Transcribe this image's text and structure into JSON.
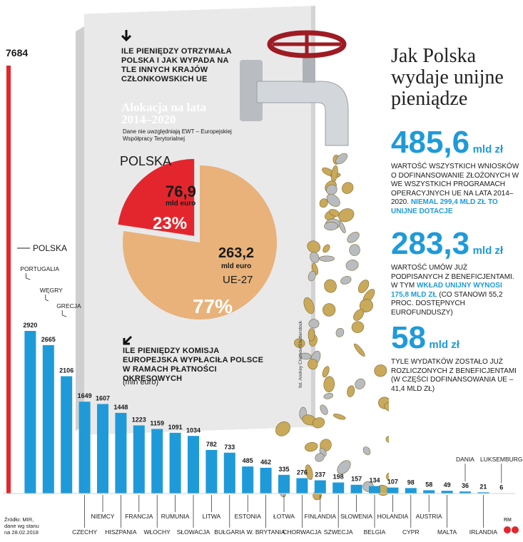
{
  "header": {
    "title_line1": "Jak Polska",
    "title_line2": "wydaje unijne",
    "title_line3": "pieniądze"
  },
  "allocation": {
    "question": "ILE PIENIĘDZY OTRZYMAŁA POLSKA I JAK WYPADA NA TLE INNYCH KRAJÓW CZŁONKOWSKICH UE",
    "title": "Alokacja na lata 2014–2020",
    "note": "Dane nie uwzględniają EWT – Europejskiej Współpracy Terytorialnej",
    "polska_label": "POLSKA",
    "polska_value": "76,9",
    "polska_unit": "mld euro",
    "polska_pct": "23%",
    "ue_value": "263,2",
    "ue_unit": "mld euro",
    "ue_label": "UE-27",
    "ue_pct": "77%",
    "colors": {
      "polska": "#e3262d",
      "ue": "#e8b27a"
    }
  },
  "payments": {
    "question": "ILE PIENIĘDZY KOMISJA EUROPEJSKA WYPŁACIŁA POLSCE W RAMACH PŁATNOŚCI OKRESOWYCH",
    "unit": "(mln euro)"
  },
  "stats": [
    {
      "value": "485,6",
      "unit": "mld zł",
      "text": "WARTOŚĆ WSZYSTKICH WNIOSKÓW O DOFINANSOWANIE ZŁOŻONYCH W WE WSZYSTKICH PROGRAMACH OPERACYJNYCH UE NA LATA 2014–2020.",
      "highlight": "NIEMAL 299,4 MLD ZŁ TO UNIJNE DOTACJE"
    },
    {
      "value": "283,3",
      "unit": "mld zł",
      "text_before": "WARTOŚĆ UMÓW JUŻ PODPISANYCH Z BENEFICJENTAMI. W TYM",
      "highlight": "WKŁAD UNIJNY WYNOSI 175,8 MLD ZŁ",
      "text_after": "(CO STANOWI 55,2 PROC. DOSTĘPNYCH EUROFUNDUSZY)"
    },
    {
      "value": "58",
      "unit": "mld zł",
      "text": "TYLE WYDATKÓW ZOSTAŁO JUŻ ROZLICZONYCH Z BENEFICJENTAMI (W CZĘŚCI DOFINANSOWANIA UE – 41,4 MLD ZŁ)"
    }
  ],
  "source": {
    "line1": "Źródło: MIR,",
    "line2": "dane wg stanu",
    "line3": "na 28.02.2018"
  },
  "photo_credit": "fot. Andrey Chizhov/Shutterstock",
  "logo": "RM",
  "chart_data": [
    {
      "type": "bar",
      "categories": [
        "POLSKA",
        "PORTUGALIA",
        "WĘGRY",
        "GRECJA",
        "CZECHY",
        "NIEMCY",
        "HISZPANIA",
        "FRANCJA",
        "WŁOCHY",
        "RUMUNIA",
        "SŁOWACJA",
        "LITWA",
        "BUŁGARIA",
        "ESTONIA",
        "W. BRYTANIA",
        "ŁOTWA",
        "CHORWACJA",
        "FINLANDIA",
        "SZWECJA",
        "SŁOWENIA",
        "BELGIA",
        "HOLANDIA",
        "CYPR",
        "AUSTRIA",
        "MALTA",
        "DANIA",
        "IRLANDIA",
        "LUKSEMBURG"
      ],
      "values": [
        7684,
        2920,
        2665,
        2106,
        1649,
        1607,
        1448,
        1223,
        1159,
        1091,
        1034,
        782,
        733,
        485,
        462,
        335,
        276,
        237,
        198,
        157,
        134,
        107,
        98,
        58,
        49,
        36,
        21,
        6
      ],
      "colors": {
        "highlight": "#e3262d",
        "default": "#1f9ad9"
      },
      "title": "ILE PIENIĘDZY KOMISJA EUROPEJSKA WYPŁACIŁA POLSCE W RAMACH PŁATNOŚCI OKRESOWYCH",
      "ylabel": "(mln euro)",
      "ylim": [
        0,
        7684
      ]
    },
    {
      "type": "pie",
      "title": "Alokacja na lata 2014–2020",
      "categories": [
        "POLSKA",
        "UE-27"
      ],
      "values": [
        76.9,
        263.2
      ],
      "percent": [
        23,
        77
      ],
      "unit": "mld euro"
    }
  ]
}
